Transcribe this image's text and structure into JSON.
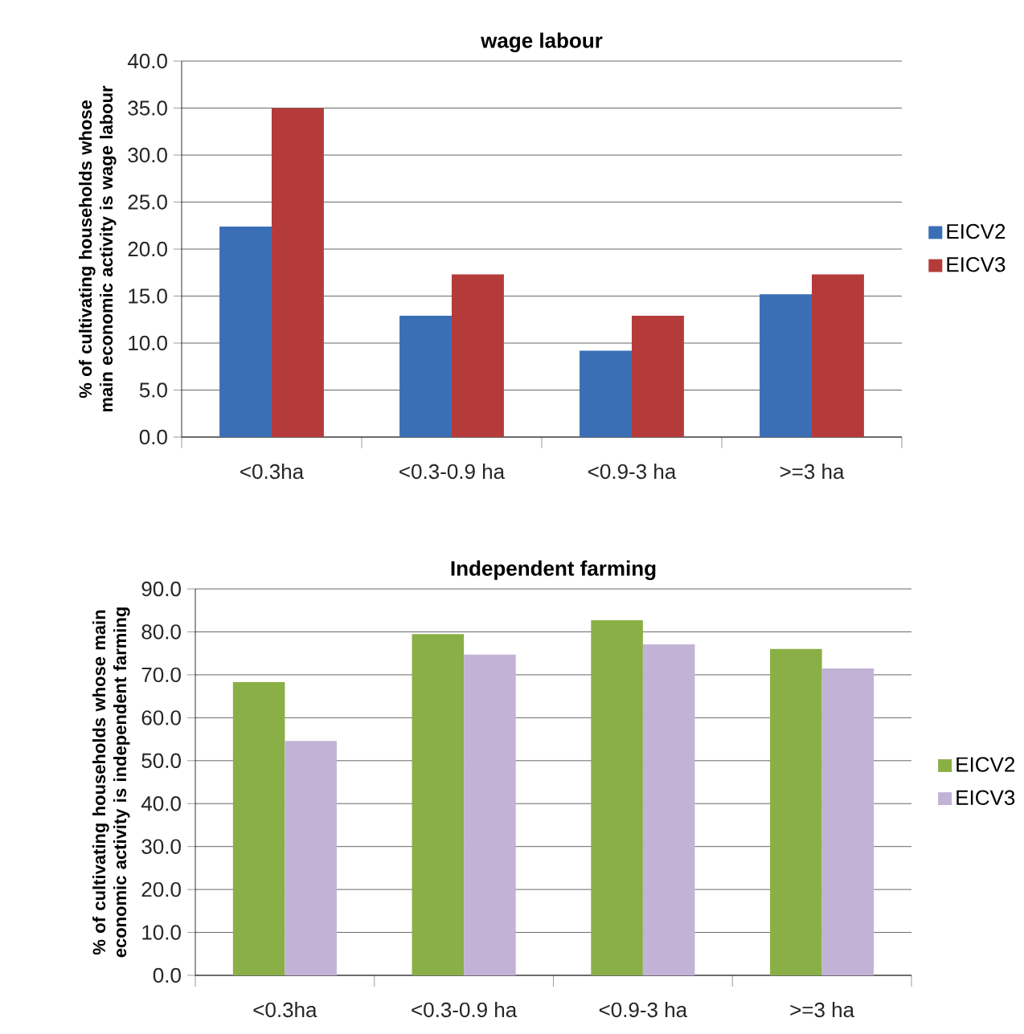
{
  "chart_data": [
    {
      "type": "bar",
      "title": "wage labour",
      "ylabel": "% of cultivating households whose main economic activity is wage labour",
      "categories": [
        "<0.3ha",
        "<0.3-0.9 ha",
        "<0.9-3 ha",
        ">=3 ha"
      ],
      "series": [
        {
          "name": "EICV2",
          "color": "#3a6fb5",
          "values": [
            22.4,
            12.9,
            9.2,
            15.2
          ]
        },
        {
          "name": "EICV3",
          "color": "#b53b3a",
          "values": [
            35.0,
            17.3,
            12.9,
            17.3
          ]
        }
      ],
      "ylim": [
        0,
        40
      ],
      "yticks": [
        {
          "value": 0,
          "label": "0.0"
        },
        {
          "value": 5,
          "label": "5.0"
        },
        {
          "value": 10,
          "label": "10.0"
        },
        {
          "value": 15,
          "label": "15.0"
        },
        {
          "value": 20,
          "label": "20.0"
        },
        {
          "value": 25,
          "label": "25.0"
        },
        {
          "value": 30,
          "label": "30.0"
        },
        {
          "value": 35,
          "label": "35.0"
        },
        {
          "value": 40,
          "label": "40.0"
        }
      ],
      "grid": "y",
      "legend": "right"
    },
    {
      "type": "bar",
      "title": "Independent farming",
      "ylabel": "% of cultivating households whose main economic activity is independent farming",
      "categories": [
        "<0.3ha",
        "<0.3-0.9 ha",
        "<0.9-3 ha",
        ">=3 ha"
      ],
      "series": [
        {
          "name": "EICV2",
          "color": "#8aaf46",
          "values": [
            68.3,
            79.5,
            82.7,
            76.0
          ]
        },
        {
          "name": "EICV3",
          "color": "#c2b3d6",
          "values": [
            54.6,
            74.7,
            77.1,
            71.5
          ]
        }
      ],
      "ylim": [
        0,
        90
      ],
      "yticks": [
        {
          "value": 0,
          "label": "0.0"
        },
        {
          "value": 10,
          "label": "10.0"
        },
        {
          "value": 20,
          "label": "20.0"
        },
        {
          "value": 30,
          "label": "30.0"
        },
        {
          "value": 40,
          "label": "40.0"
        },
        {
          "value": 50,
          "label": "50.0"
        },
        {
          "value": 60,
          "label": "60.0"
        },
        {
          "value": 70,
          "label": "70.0"
        },
        {
          "value": 80,
          "label": "80.0"
        },
        {
          "value": 90,
          "label": "90.0"
        }
      ],
      "grid": "y",
      "legend": "right"
    }
  ]
}
